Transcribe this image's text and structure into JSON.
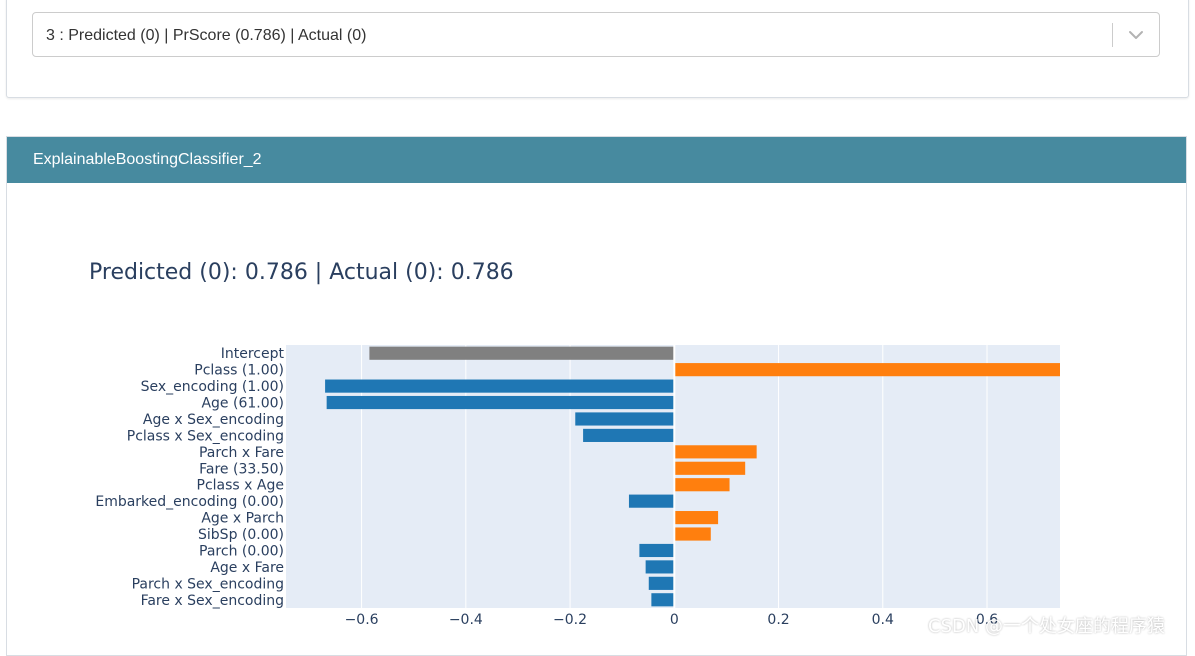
{
  "selector": {
    "value": "3 : Predicted (0) | PrScore (0.786) | Actual (0)"
  },
  "panel": {
    "title": "ExplainableBoostingClassifier_2"
  },
  "watermark": "CSDN @一个处女座的程序猿",
  "colors": {
    "header": "#478a9f",
    "positive": "#ff7f0e",
    "negative": "#1f77b4",
    "intercept": "#808080",
    "plot_bg": "#e5ecf6"
  },
  "chart_data": {
    "type": "bar",
    "orientation": "horizontal",
    "title": "Predicted (0): 0.786 | Actual (0): 0.786",
    "xlabel": "",
    "ylabel": "",
    "xlim": [
      -0.745,
      0.74
    ],
    "xticks": [
      -0.6,
      -0.4,
      -0.2,
      0,
      0.2,
      0.4,
      0.6
    ],
    "xtick_labels": [
      "−0.6",
      "−0.4",
      "−0.2",
      "0",
      "0.2",
      "0.4",
      "0.6"
    ],
    "categories": [
      "Intercept",
      "Pclass (1.00)",
      "Sex_encoding (1.00)",
      "Age (61.00)",
      "Age x Sex_encoding",
      "Pclass x Sex_encoding",
      "Parch x Fare",
      "Fare (33.50)",
      "Pclass x Age",
      "Embarked_encoding (0.00)",
      "Age x Parch",
      "SibSp (0.00)",
      "Parch (0.00)",
      "Age x Fare",
      "Parch x Sex_encoding",
      "Fare x Sex_encoding"
    ],
    "values": [
      -0.585,
      0.74,
      -0.67,
      -0.667,
      -0.19,
      -0.175,
      0.158,
      0.136,
      0.106,
      -0.087,
      0.084,
      0.07,
      -0.067,
      -0.055,
      -0.049,
      -0.044
    ],
    "bar_kinds": [
      "intercept",
      "pos",
      "neg",
      "neg",
      "neg",
      "neg",
      "pos",
      "pos",
      "pos",
      "neg",
      "pos",
      "pos",
      "neg",
      "neg",
      "neg",
      "neg"
    ],
    "grid": true,
    "legend": "none"
  }
}
